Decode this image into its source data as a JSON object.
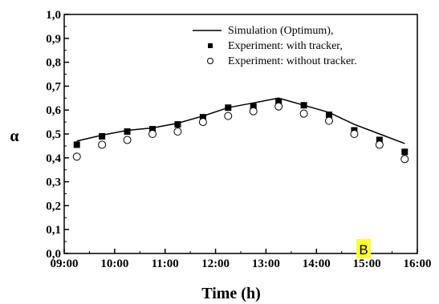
{
  "chart_data": {
    "type": "line",
    "title": "",
    "xlabel": "Time (h)",
    "ylabel": "α",
    "x_range": [
      "09:00",
      "16:00"
    ],
    "ylim": [
      0,
      1.0
    ],
    "x_ticks": [
      "09:00",
      "10:00",
      "11:00",
      "12:00",
      "13:00",
      "14:00",
      "15:00",
      "16:00"
    ],
    "y_ticks": [
      "0,0",
      "0,1",
      "0,2",
      "0,3",
      "0,4",
      "0,5",
      "0,6",
      "0,7",
      "0,8",
      "0,9",
      "1,0"
    ],
    "grid": false,
    "legend_position": "top-right",
    "x": [
      "09:15",
      "09:45",
      "10:15",
      "10:45",
      "11:15",
      "11:45",
      "12:15",
      "12:45",
      "13:15",
      "13:45",
      "14:15",
      "14:45",
      "15:15",
      "15:45"
    ],
    "series": [
      {
        "name": "Simulation (Optimum),",
        "style": "line",
        "color": "#000000",
        "values": [
          0.47,
          0.495,
          0.515,
          0.525,
          0.545,
          0.575,
          0.61,
          0.63,
          0.65,
          0.62,
          0.59,
          0.54,
          0.5,
          0.46
        ]
      },
      {
        "name": "Experiment: with tracker,",
        "style": "filled-square",
        "color": "#000000",
        "values": [
          0.455,
          0.49,
          0.51,
          0.52,
          0.54,
          0.57,
          0.61,
          0.615,
          0.635,
          0.62,
          0.58,
          0.515,
          0.475,
          0.425
        ]
      },
      {
        "name": "Experiment: without tracker.",
        "style": "open-circle",
        "color": "#000000",
        "values": [
          0.405,
          0.455,
          0.475,
          0.5,
          0.51,
          0.55,
          0.575,
          0.595,
          0.615,
          0.585,
          0.555,
          0.5,
          0.455,
          0.395
        ]
      }
    ]
  },
  "badge": {
    "label": "B",
    "color": "#ffff33"
  }
}
